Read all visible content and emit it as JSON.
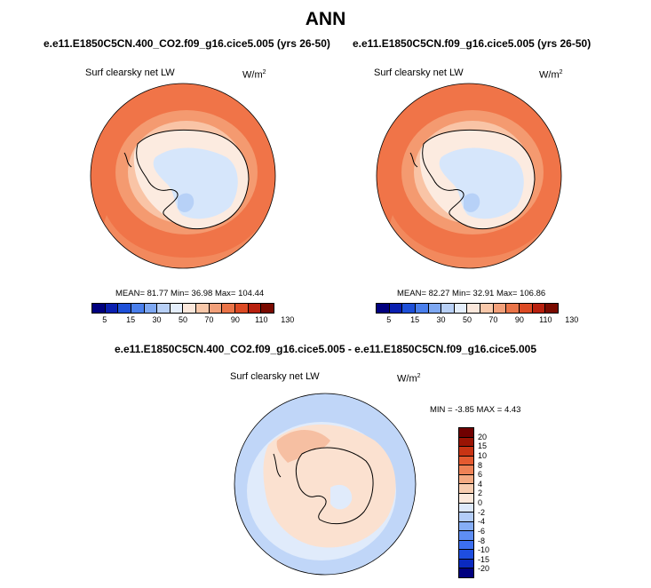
{
  "figure": {
    "title": "ANN",
    "diff_title": "e.e11.E1850C5CN.400_CO2.f09_g16.cice5.005 - e.e11.E1850C5CN.f09_g16.cice5.005"
  },
  "panels": [
    {
      "case": "e.e11.E1850C5CN.400_CO2.f09_g16.cice5.005 (yrs 26-50)",
      "variable": "Surf clearsky net LW",
      "units": "W/m",
      "units_exp": "2",
      "stats": "MEAN=  81.77  Min=  36.98  Max= 104.44"
    },
    {
      "case": "e.e11.E1850C5CN.f09_g16.cice5.005 (yrs 26-50)",
      "variable": "Surf clearsky net LW",
      "units": "W/m",
      "units_exp": "2",
      "stats": "MEAN=  82.27  Min=  32.91  Max= 106.86"
    },
    {
      "variable": "Surf clearsky net LW",
      "units": "W/m",
      "units_exp": "2",
      "stats": "MIN =  -3.85 MAX =   4.43"
    }
  ],
  "colorbar_abs": {
    "colors": [
      "#00007f",
      "#0a1fb0",
      "#1e50d8",
      "#4a7fec",
      "#7ea8f2",
      "#b8d0f6",
      "#e4eefb",
      "#fbe8dc",
      "#f8c8aa",
      "#f2a07a",
      "#ea7448",
      "#dc4a24",
      "#b8200e",
      "#7a0a00"
    ],
    "ticks": [
      "5",
      "15",
      "30",
      "50",
      "70",
      "90",
      "110",
      "130"
    ]
  },
  "colorbar_diff": {
    "colors": [
      "#00007f",
      "#0a2ac0",
      "#1e4ee0",
      "#3c6ff0",
      "#5e8ef4",
      "#86aef6",
      "#b3cdf8",
      "#dde9fb",
      "#fce9dc",
      "#f8cdb0",
      "#f4aa82",
      "#ee8256",
      "#e45a30",
      "#c83414",
      "#9a1404",
      "#700000"
    ],
    "ticks": [
      "20",
      "15",
      "10",
      "8",
      "6",
      "4",
      "2",
      "0",
      "-2",
      "-4",
      "-6",
      "-8",
      "-10",
      "-15",
      "-20"
    ]
  },
  "map_colors": {
    "ocean_warm": "#f07448",
    "ocean_mid": "#f49a70",
    "ocean_light": "#f9c4a6",
    "land_cream": "#fcebe0",
    "land_ice": "#d6e6fb",
    "land_blue": "#b7d1f7",
    "diff_ocean": "#c0d6f8",
    "diff_light": "#e0ebfb",
    "diff_peach": "#fbe1d0",
    "diff_red": "#f4a884"
  }
}
